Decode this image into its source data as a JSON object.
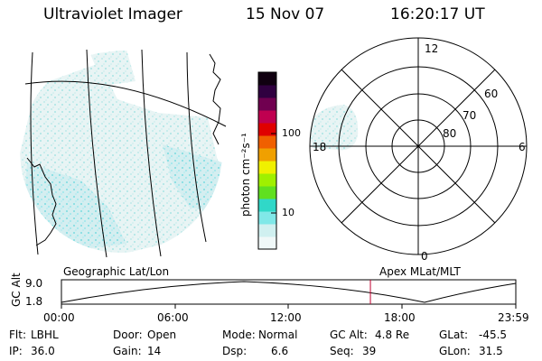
{
  "header": {
    "title": "Ultraviolet Imager",
    "date": "15 Nov 07",
    "time": "16:20:17 UT"
  },
  "colorbar": {
    "unit_label": "photon cm⁻²s⁻¹",
    "ticks": [
      "100",
      "10"
    ],
    "colors": [
      "#f0f8f8",
      "#d0f0f0",
      "#80e8e8",
      "#30d8c8",
      "#60e020",
      "#a0f000",
      "#f0f000",
      "#f0a000",
      "#f06000",
      "#e00000",
      "#c00050",
      "#700050",
      "#300040",
      "#100010"
    ]
  },
  "geo_map": {
    "label": "Geographic Lat/Lon"
  },
  "polar": {
    "label": "Apex MLat/MLT",
    "mlt_labels": {
      "top": "12",
      "left": "18",
      "right": "6",
      "bottom": "0"
    },
    "lat_labels": [
      "60",
      "70",
      "80"
    ]
  },
  "altitude_plot": {
    "ylabel": "GC Alt",
    "ymax": "9.0",
    "ymin": "1.8",
    "x_ticks": [
      "00:00",
      "06:00",
      "12:00",
      "18:00",
      "23:59"
    ],
    "current_time_fraction": 0.68
  },
  "status": {
    "filter_label": "Flt:",
    "filter_value": "LBHL",
    "door_label": "Door:",
    "door_value": "Open",
    "mode_label": "Mode:",
    "mode_value": "Normal",
    "gcalt_label": "GC Alt:",
    "gcalt_value": "4.8 Re",
    "glat_label": "GLat:",
    "glat_value": "-45.5",
    "ip_label": "IP:",
    "ip_value": "36.0",
    "gain_label": "Gain:",
    "gain_value": "14",
    "dsp_label": "Dsp:",
    "dsp_value": "6.6",
    "seq_label": "Seq:",
    "seq_value": "39",
    "glon_label": "GLon:",
    "glon_value": "31.5"
  }
}
